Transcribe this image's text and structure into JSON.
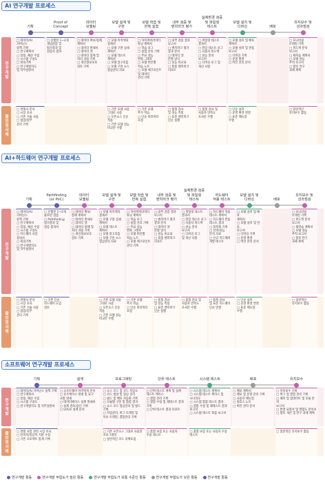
{
  "colors": {
    "high": "#5a5fa8",
    "mid": "#c05fae",
    "low": "#4aa58a",
    "none": "#9a9a9a",
    "label_dev": "#e48b8b",
    "label_dev2": "#e59a6f",
    "row_dev": "#fbeeee",
    "row_nondev": "#fdf4e8"
  },
  "row_labels": {
    "dev": "연구개발",
    "nondev": "불인정사례"
  },
  "sections": [
    {
      "title": "AI 연구개발 프로세스",
      "phases": [
        {
          "label": "기획",
          "level": "high"
        },
        {
          "label": "Proof of\nConcept",
          "level": "high"
        },
        {
          "label": "데이터\n모델링",
          "level": "mid"
        },
        {
          "label": "모델 설계 및\n구현",
          "level": "mid"
        },
        {
          "label": "모델 학습 및\n반복 실험",
          "level": "mid"
        },
        {
          "label": "내부 검증 및\n벤치마크 평가",
          "level": "mid"
        },
        {
          "label": "실제환경 검증\n및 파일럿\n테스트",
          "level": "mid"
        },
        {
          "label": "모델 설치 및\n디버깅",
          "level": "low"
        },
        {
          "label": "배포",
          "level": "none"
        },
        {
          "label": "유지보수 및\n성과점검",
          "level": "mid"
        }
      ],
      "dev": [
        "□ 데이터/AI\n거버넌스\n정책 기획\n□ 연구계획서\n□ 일정, 예산 수립\n□ 시스템 구성도\n□ 회의기록\n□ 연구개발지도\n및 직무설명서",
        "□ 선행된 1~2개\n개념검증 및\n평가결과 및\n검증서 결과",
        "□ 데이터 확보/정제\n계획서\n□ 데이터 명세서\n□ 데이터 셋\n□ 데이터 정제 및\n처리 과정 기록\n□ 개인정보보호\n검토 기록",
        "□ 모델 아키텍처\n설계서\n□ 모델 구현 상세\n계획서\n□ 모델 테스트\n계획서\n□ 모델 알고리즘\n□ 모델 구현 소스\n형상관리 자료",
        "□ 하이퍼파라미터\n튜닝 계획서\n□ 학습 로그\n□ 실험 관리 기록\n□ 주요 성능\n변화 그래프\n□ 모델 버전별\n학습 노트\n□ 모델 체크포인트\n및 데이터\n관리 기록",
        "□ 내부 검증 결과\n보고서\n□ 벤치마크 평가\n결과 분석\n□ 데이터 셋\n분할 방식\n□ 성능 비교표\n□ 최종 벤치마크\n리포트",
        "□ 파일럿 테스트\n결과서\n□ 현장 테스트 로그\n□ 사용자 피드백\n□ 성능 분석\n보고서\n□ 디버깅 로그 및\n개선 사항",
        "□ 모델 설치 및 배포\n계획서\n□ 모델 설치 및 연동\n보고서\n□ 디버깅 기록\n□ 운영 환경\n□ 버전 관리 문서",
        "",
        "□ 모니터링\n트래킹 기록\n□ 피드백 분석\n보고서\n□ 재학습 계획서\n□ 모델 성능\n추적 보고서\n□ 향후 연구\n과제 계획"
      ],
      "nondev": [
        "□ 경쟁사 분석\n□ 시장 조사\n□ 기존 기술 사용\n□ 협업/업무\n관리 기록",
        "",
        "",
        "□ 기존 모델 사용\n그대로 사용\n□ 오픈소스 단순\n적용\n□ 기존 모델 성능\n비교만 수행",
        "□ 기존 모델\n추가 학습\n□ 단순 파라미터\n조정",
        "□ 품질 검사\n및 성능 측정\n□ 표준 벤치마크\n단순 실행",
        "□ 품질 검사 및\n사용자 만족도\n조사만 수행",
        "□ 단순 설치\n□ 운영 환경 변경\n□ 표준 매뉴얼\n수행",
        "",
        "□ 일반적인\n유지보수 활동"
      ]
    },
    {
      "title": "AI+하드웨어 연구개발 프로세스",
      "phases": [
        {
          "label": "기획",
          "level": "high"
        },
        {
          "label": "Pathfinding\n(or PoC)",
          "level": "high"
        },
        {
          "label": "데이터\n모델링",
          "level": "mid"
        },
        {
          "label": "모델 설계 및\n구현",
          "level": "mid"
        },
        {
          "label": "모델 학습 및\n반복 실험",
          "level": "mid"
        },
        {
          "label": "내부 검증 및\n벤치마크 평가",
          "level": "mid"
        },
        {
          "label": "실제환경 검증\n및 파일럿\n테스트",
          "level": "mid"
        },
        {
          "label": "하드웨어\n적용 테스트",
          "level": "mid"
        },
        {
          "label": "모델 설치 및\n디버깅",
          "level": "low"
        },
        {
          "label": "배포",
          "level": "none"
        },
        {
          "label": "유지보수 및\n성과점검",
          "level": "mid"
        }
      ],
      "dev": [
        "□ 데이터/AI\n거버넌스\n정책 기획\n□ 연구계획서\n□ 일정, 예산 수립\n□ 시스템 구성도\n□ 하드웨어 사양\n정의서\n□ 회의기록\n□ 연구개발지도\n및 직무설명서",
        "□ 선행된 1~2개\n솔루션 검증\n□ Pathfinding\n평가결과 및\n검증 결과서",
        "□ 데이터 확보/\n정제 계획서\n□ 데이터 명세서\n□ 데이터 셋\n□ 데이터 정제 및\n처리 과정 기록\n□ 개인정보보호\n검토 기록",
        "□ 모델 아키텍처\n설계서\n□ 모델 구현 상세\n계획서\n□ 모델 테스트\n계획서\n□ 모델 알고리즘\n□ 모델 구현 소스\n형상관리 자료",
        "□ 하이퍼파라미터\n튜닝 계획서\n□ 학습 로그\n□ 실험 관리 기록\n□ 주요 성능\n변화 그래프\n□ 모델 버전별\n학습 노트\n□ 모델 체크포인트\n관리 기록",
        "□ 내부 검증 결과\n보고서\n□ 벤치마크 평가\n결과 분석\n□ 데이터 셋\n분할 방식\n□ 성능 비교표\n□ 최종 벤치마크\n리포트",
        "□ 파일럿 테스트\n결과서\n□ 현장 테스트 로그\n□ 사용자 피드백\n□ 성능 분석\n보고서\n□ 디버깅 로그\n및 개선 사항",
        "□ 하드웨어 적용\n테스트 계획서\n□ 하드웨어 연동\n테스트 결과\n□ 최적화 기록\n□ 전력/성능\n분석 자료\n□ 신규 하드웨어\n개발 테스트",
        "□ 모델 설치 및 배포\n계획서\n□ 모델 설치 및 연동\n보고서\n□ 디버깅 기록\n□ 운영 환경\n□ 버전 관리 문서",
        "",
        "□ 모니터링\n트래킹 기록\n□ 피드백 분석\n보고서\n□ 재학습 계획서\n□ 모델 성능\n추적 보고서\n□ 향후 연구\n과제 계획"
      ],
      "nondev": [
        "□ 경쟁사 분석\n□ 시장 조사\n□ 기존 기술 사용\n□ 협업/업무\n관리 기록",
        "□ 기존 단순\n하드웨어 도입\n검토",
        "",
        "□ 기존 모델 사용\n그대로 사용\n□ 오픈소스 단순\n적용\n□ 기존 모델 성능\n비교만 수행",
        "□ 기존 모델\n추가 학습\n□ 단순 파라미터\n조정",
        "□ 품질 검사\n및 성능 측정\n□ 표준 벤치마크\n단순 실행",
        "□ 품질 검사 및\n사용자 만족도\n조사만 수행",
        "□ 품질 검사\n및 표준 하드웨어\n단순 연결",
        "□ 단순 설치\n□ 운영 환경 변경\n□ 표준 매뉴얼\n수행",
        "",
        "□ 일반적인\n유지보수 활동"
      ]
    },
    {
      "title": "소프트웨어 연구개발 프로세스",
      "phases": [
        {
          "label": "기획",
          "level": "high"
        },
        {
          "label": "설계",
          "level": "mid"
        },
        {
          "label": "프로그래밍",
          "level": "mid"
        },
        {
          "label": "단위 테스트",
          "level": "mid"
        },
        {
          "label": "시스템 테스트",
          "level": "low"
        },
        {
          "label": "배포",
          "level": "none"
        },
        {
          "label": "유지보수",
          "level": "mid"
        }
      ],
      "dev": [
        "□ 데이터/AI 거버넌스 정책 기획\n□ 연구계획서\n□ 일정, 예산 수립\n□ 시스템 구성도\n□ 연구개발지도 및 직무설명서",
        "□ 소프트웨어 아키텍처 문서\n□ 유즈케이스 명세 및 요구\n사항 명세\n□ 데이터베이스 설계 명세서\n□ 설계 검토/승인 기록\n□ UI/UX 설계 문서",
        "□ 소스 코드 및 코드 저장소\n□ 코드 생성 및 형상 관리\n□ 빌드 및 배포 자동화 기록\n□ 모듈별 구현 및 통합 결과\n□ 소스 코드 형상관리 및 빌드\n기록\n□ 작업관리, 버그 트래킹 및\n이슈 트래킹, 결함관리 기록",
        "□ 단위 테스트 계획 및 설계\n테스트 케이스\n□ 결함 관리 기록\n□ 결함 수정 및 재테스트 결과\n기록\n□ 단위 테스트 결과 리포트",
        "□ 시스템 테스트 계획서\n□ 시스템 테스트 케이스 및\n시나리오\n□ 시스템 통합 테스트 결과\n□ 결함 수정 및 재테스트 결과\n보고서\n□ 시스템 테스트 최종 보고서",
        "□ 배포 계획서\n□ 배포 및 운영 관리 기록\n□ 사용자 매뉴얼\n□ 릴리스 노트\n□ 버전 관리 문서",
        "□ 유지보수 기록\n□ 버그 및 결함 관리 기록\n□ 패치 및 업데이트 및 모듈 분석\n보고서\n□ 변경 요청서 및 영향도 분석서\n□ 향후 개선 및 연구 과제 계획"
      ],
      "nondev": [
        "□ 경쟁 사업 관련 시장 조사\n□ 반복적/일상적 지원 수집\n□ 기존 프로젝트 통계 기록",
        "",
        "□ 기존 오픈소스 그대로 사용한\n프로그래밍\n□ 일반적인 코드 리팩토링",
        "□ 품질 보증 또는 사용자\n수용 테스트",
        "□ 품질 보증 또는 사용자 수용\n테스트",
        "",
        "□ 일반적인 유지보수 활동"
      ]
    }
  ],
  "legend": [
    {
      "label": "연구개발 활동",
      "level": "high"
    },
    {
      "label": "연구개발 부합도가 높은 활동",
      "level": "mid"
    },
    {
      "label": "연구개발 부합도가 보통 수준인 활동",
      "level": "low"
    },
    {
      "label": "연구개발 부합도가 낮은 활동",
      "level": "none"
    },
    {
      "label": "연구개발 활동",
      "level": "high"
    }
  ]
}
